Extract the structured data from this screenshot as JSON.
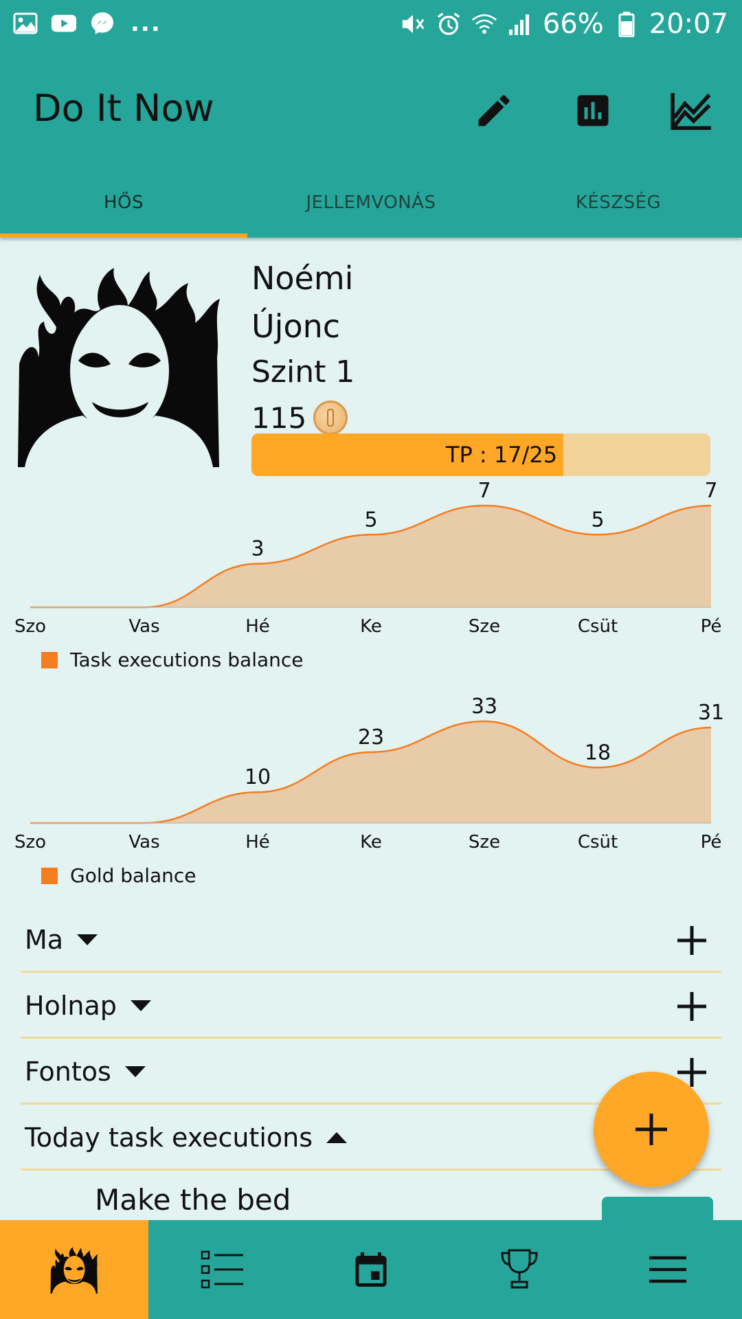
{
  "status_bar": {
    "battery": "66%",
    "time": "20:07",
    "dots": "..."
  },
  "app_bar": {
    "title": "Do It Now",
    "actions": [
      "edit-icon",
      "bar-chart-icon",
      "line-chart-icon"
    ]
  },
  "tabs": [
    {
      "label": "HŐS",
      "active": true
    },
    {
      "label": "JELLEMVONÁS",
      "active": false
    },
    {
      "label": "KÉSZSÉG",
      "active": false
    }
  ],
  "hero": {
    "name": "Noémi",
    "rank": "Újonc",
    "level": "Szint 1",
    "gold": "115",
    "tp_label": "TP : 17/25",
    "tp_value": 17,
    "tp_max": 25
  },
  "chart_data": [
    {
      "type": "area",
      "categories": [
        "Szo",
        "Vas",
        "Hé",
        "Ke",
        "Sze",
        "Csüt",
        "Pé"
      ],
      "series": [
        {
          "name": "Task executions balance",
          "values": [
            0,
            0,
            3,
            5,
            7,
            5,
            7
          ],
          "labels": [
            "",
            "",
            "3",
            "5",
            "7",
            "5",
            "7"
          ]
        }
      ],
      "ylim": [
        0,
        7
      ],
      "legend": "bottom-left",
      "color": "#f57c1f",
      "fill": "#e8cba8"
    },
    {
      "type": "area",
      "categories": [
        "Szo",
        "Vas",
        "Hé",
        "Ke",
        "Sze",
        "Csüt",
        "Pé"
      ],
      "series": [
        {
          "name": "Gold balance",
          "values": [
            0,
            0,
            10,
            23,
            33,
            18,
            31
          ],
          "labels": [
            "",
            "",
            "10",
            "23",
            "33",
            "18",
            "31"
          ]
        }
      ],
      "ylim": [
        0,
        33
      ],
      "legend": "bottom-left",
      "color": "#f57c1f",
      "fill": "#e8cba8"
    }
  ],
  "sections": [
    {
      "label": "Ma",
      "expanded": false
    },
    {
      "label": "Holnap",
      "expanded": false
    },
    {
      "label": "Fontos",
      "expanded": false
    },
    {
      "label": "Today task executions",
      "expanded": true
    }
  ],
  "tasks": {
    "first_item": "Make the bed"
  },
  "bottom_nav": [
    {
      "icon": "hero-icon",
      "active": true
    },
    {
      "icon": "task-list-icon",
      "active": false
    },
    {
      "icon": "calendar-icon",
      "active": false
    },
    {
      "icon": "trophy-icon",
      "active": false
    },
    {
      "icon": "menu-icon",
      "active": false
    }
  ],
  "colors": {
    "primary": "#26a69a",
    "accent": "#ffa726",
    "background": "#e3f3f2"
  }
}
